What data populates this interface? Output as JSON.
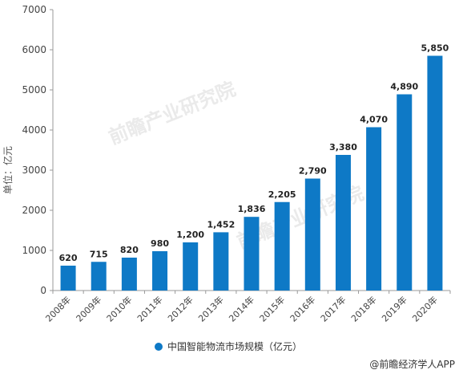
{
  "chart_data": {
    "type": "bar",
    "categories": [
      "2008年",
      "2009年",
      "2010年",
      "2011年",
      "2012年",
      "2013年",
      "2014年",
      "2015年",
      "2016年",
      "2017年",
      "2018年",
      "2019年",
      "2020年"
    ],
    "values": [
      620,
      715,
      820,
      980,
      1200,
      1452,
      1836,
      2205,
      2790,
      3380,
      4070,
      4890,
      5850
    ],
    "value_labels": [
      "620",
      "715",
      "820",
      "980",
      "1,200",
      "1,452",
      "1,836",
      "2,205",
      "2,790",
      "3,380",
      "4,070",
      "4,890",
      "5,850"
    ],
    "series": [
      {
        "name": "中国智能物流市场规模（亿元）",
        "color": "#0e79c6"
      }
    ],
    "ylabel": "单位：亿元",
    "xlabel": "",
    "ylim": [
      0,
      7000
    ],
    "yticks": [
      0,
      1000,
      2000,
      3000,
      4000,
      5000,
      6000,
      7000
    ],
    "grid": false,
    "legend_position": "bottom-center",
    "source": "@前瞻经济学人APP",
    "watermark": "前瞻产业研究院"
  }
}
